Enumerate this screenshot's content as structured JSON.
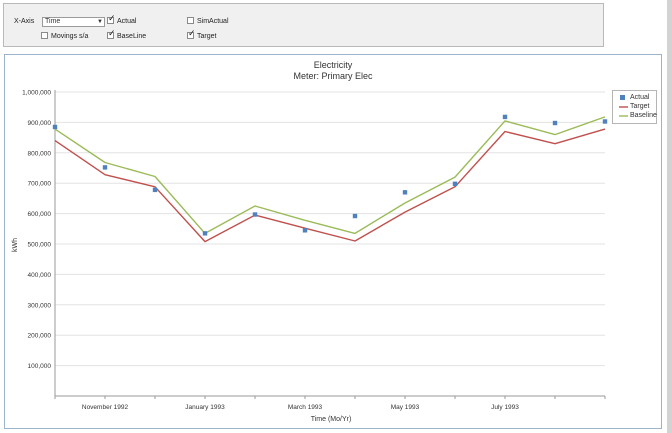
{
  "controls": {
    "xaxis_label": "X-Axis",
    "xaxis_value": "Time",
    "actual_label": "Actual",
    "actual_checked": true,
    "simactual_label": "SimActual",
    "simactual_checked": false,
    "movings_label": "Movings s/a",
    "movings_checked": false,
    "baseline_label": "BaseLine",
    "baseline_checked": true,
    "target_label": "Target",
    "target_checked": true
  },
  "colors": {
    "actual": "#4f81bd",
    "target": "#c0504d",
    "baseline": "#9bbb59",
    "panel_border": "#9bb4cc"
  },
  "chart_data": {
    "type": "line",
    "title": "Electricity",
    "subtitle": "Meter: Primary Elec",
    "xlabel": "Time (Mo/Yr)",
    "ylabel": "kWh",
    "ylim": [
      0,
      1000000
    ],
    "yticks": [
      "1,000,000",
      "900,000",
      "800,000",
      "700,000",
      "600,000",
      "500,000",
      "400,000",
      "300,000",
      "200,000",
      "100,000"
    ],
    "ytick_values": [
      1000000,
      900000,
      800000,
      700000,
      600000,
      500000,
      400000,
      300000,
      200000,
      100000
    ],
    "x": [
      "1992-10",
      "1992-11",
      "1992-12",
      "1993-01",
      "1993-02",
      "1993-03",
      "1993-04",
      "1993-05",
      "1993-06",
      "1993-07",
      "1993-08",
      "1993-09"
    ],
    "xticks": [
      "November 1992",
      "January 1993",
      "March 1993",
      "May 1993",
      "July 1993"
    ],
    "xtick_positions": [
      1,
      3,
      5,
      7,
      9
    ],
    "grid": true,
    "legend": "top-right",
    "series": [
      {
        "name": "Actual",
        "kind": "scatter",
        "values": [
          885000,
          752000,
          678000,
          535000,
          597000,
          545000,
          592000,
          670000,
          698000,
          918000,
          898000,
          903000
        ]
      },
      {
        "name": "Target",
        "kind": "line",
        "values": [
          840000,
          728000,
          688000,
          508000,
          595000,
          552000,
          510000,
          605000,
          688000,
          870000,
          830000,
          878000
        ]
      },
      {
        "name": "Baseline",
        "kind": "line",
        "values": [
          878000,
          768000,
          722000,
          535000,
          625000,
          578000,
          535000,
          635000,
          720000,
          905000,
          860000,
          918000
        ]
      }
    ]
  }
}
